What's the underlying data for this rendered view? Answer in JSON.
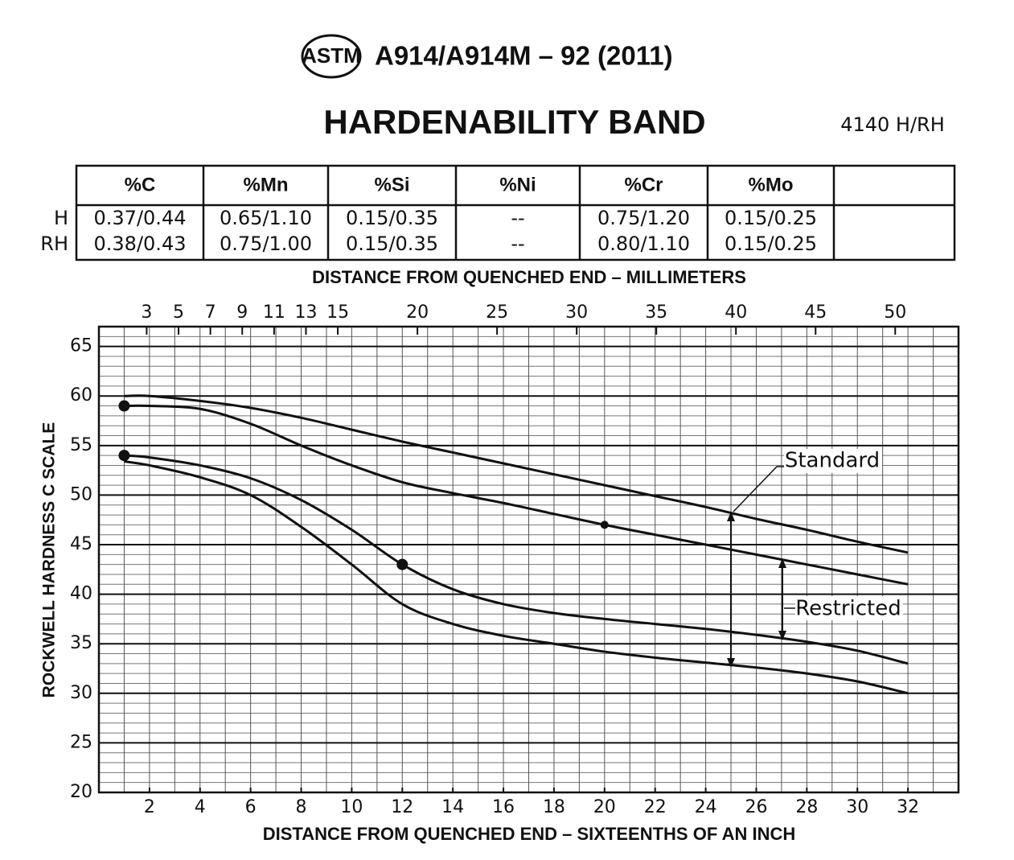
{
  "header": {
    "logo": "ASTM",
    "designation": "A914/A914M – 92 (2011)",
    "title": "HARDENABILITY BAND",
    "grade": "4140 H/RH"
  },
  "table": {
    "columns": [
      "%C",
      "%Mn",
      "%Si",
      "%Ni",
      "%Cr",
      "%Mo"
    ],
    "rows": [
      {
        "label": "H",
        "cells": [
          "0.37/0.44",
          "0.65/1.10",
          "0.15/0.35",
          "--",
          "0.75/1.20",
          "0.15/0.25"
        ]
      },
      {
        "label": "RH",
        "cells": [
          "0.38/0.43",
          "0.75/1.00",
          "0.15/0.35",
          "--",
          "0.80/1.10",
          "0.15/0.25"
        ]
      }
    ]
  },
  "chart_data": {
    "type": "line",
    "x_label": "DISTANCE FROM QUENCHED END – SIXTEENTHS OF AN INCH",
    "x2_label": "DISTANCE FROM QUENCHED END – MILLIMETERS",
    "y_label": "ROCKWELL HARDNESS C SCALE",
    "xlim": [
      0,
      34
    ],
    "xticks": [
      2,
      4,
      6,
      8,
      10,
      12,
      14,
      16,
      18,
      20,
      22,
      24,
      26,
      28,
      30,
      32
    ],
    "x_minor_step": 1,
    "x2lim": [
      0,
      53.975
    ],
    "x2ticks": [
      3,
      5,
      7,
      9,
      11,
      13,
      15,
      20,
      25,
      30,
      35,
      40,
      45,
      50
    ],
    "ylim": [
      20,
      67
    ],
    "yticks": [
      20,
      25,
      30,
      35,
      40,
      45,
      50,
      55,
      60,
      65
    ],
    "y_minor_step": 1,
    "grid": true,
    "x": [
      1,
      2,
      4,
      6,
      8,
      10,
      12,
      14,
      16,
      18,
      20,
      22,
      24,
      26,
      28,
      30,
      32
    ],
    "series": [
      {
        "color": "#111111",
        "values": [
          60,
          60,
          59.5,
          58.8,
          57.8,
          56.6,
          55.4,
          54.3,
          53.2,
          52.1,
          51,
          49.9,
          48.8,
          47.6,
          46.5,
          45.3,
          44.2
        ]
      },
      {
        "color": "#111111",
        "values": [
          59,
          59,
          58.7,
          57.2,
          55,
          53,
          51.3,
          50.2,
          49.2,
          48.1,
          47,
          46,
          45,
          44,
          43,
          42,
          41
        ]
      },
      {
        "color": "#111111",
        "values": [
          54,
          53.8,
          53,
          51.7,
          49.5,
          46.5,
          43,
          40.5,
          39,
          38.1,
          37.5,
          37,
          36.5,
          35.9,
          35.2,
          34.3,
          33
        ]
      },
      {
        "color": "#111111",
        "values": [
          53.4,
          53,
          51.8,
          50,
          46.8,
          43,
          39,
          37,
          35.8,
          35,
          34.2,
          33.6,
          33.1,
          32.6,
          32,
          31.2,
          30
        ]
      }
    ],
    "control_points": [
      {
        "x": 1,
        "y": 59
      },
      {
        "x": 1,
        "y": 54
      },
      {
        "x": 12,
        "y": 43
      },
      {
        "x": 20,
        "y": 47
      }
    ],
    "annotations": [
      "Standard",
      "Restricted"
    ]
  }
}
